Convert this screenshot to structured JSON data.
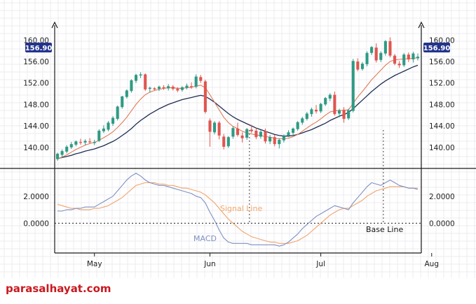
{
  "watermark": "parasalhayat.com",
  "colors": {
    "bull": "#2f9a84",
    "bear": "#e0554f",
    "fast_ma": "#e07a55",
    "slow_ma": "#1f2d52",
    "macd": "#7f8fc2",
    "signal": "#f2a46a",
    "badge": "#24348c",
    "grid": "#e6e6ee"
  },
  "chart_data": [
    {
      "type": "candlestick",
      "y_ticks": [
        "160.00",
        "156.00",
        "152.00",
        "148.00",
        "144.00",
        "140.00"
      ],
      "y_values": [
        160,
        156,
        152,
        148,
        144,
        140
      ],
      "ylim": [
        137.5,
        162
      ],
      "last_price_label": "156.90",
      "last_price": 156.9,
      "x_labels": [
        "May",
        "Jun",
        "Jul",
        "Aug"
      ],
      "x_label_index": [
        8,
        33,
        57,
        81
      ],
      "ohlc": [
        [
          137.8,
          139.0,
          137.5,
          138.8
        ],
        [
          138.6,
          139.6,
          138.0,
          139.3
        ],
        [
          139.2,
          140.4,
          138.9,
          140.1
        ],
        [
          140.0,
          141.0,
          139.7,
          140.6
        ],
        [
          140.5,
          141.3,
          140.2,
          141.1
        ],
        [
          141.0,
          141.6,
          140.5,
          140.9
        ],
        [
          140.9,
          141.5,
          140.4,
          141.2
        ],
        [
          141.1,
          141.7,
          140.7,
          141.0
        ],
        [
          140.8,
          141.4,
          140.4,
          141.0
        ],
        [
          141.2,
          143.4,
          141.0,
          143.1
        ],
        [
          143.0,
          144.1,
          142.7,
          143.5
        ],
        [
          143.3,
          144.9,
          143.0,
          144.6
        ],
        [
          144.4,
          145.8,
          144.0,
          145.5
        ],
        [
          145.3,
          147.8,
          145.0,
          147.6
        ],
        [
          147.5,
          149.6,
          147.2,
          149.5
        ],
        [
          149.4,
          150.8,
          149.1,
          150.6
        ],
        [
          150.5,
          152.7,
          150.2,
          152.5
        ],
        [
          152.4,
          153.7,
          152.0,
          153.5
        ],
        [
          153.4,
          154.0,
          152.9,
          153.6
        ],
        [
          153.6,
          153.8,
          150.5,
          150.8
        ],
        [
          150.9,
          151.3,
          150.2,
          151.1
        ],
        [
          151.0,
          151.2,
          150.6,
          150.8
        ],
        [
          150.9,
          151.5,
          150.5,
          151.3
        ],
        [
          151.2,
          151.6,
          150.7,
          151.0
        ],
        [
          151.0,
          151.8,
          150.6,
          151.4
        ],
        [
          151.3,
          151.6,
          150.6,
          150.9
        ],
        [
          150.9,
          151.2,
          150.3,
          150.6
        ],
        [
          150.7,
          151.4,
          150.4,
          151.2
        ],
        [
          151.1,
          151.9,
          150.8,
          151.5
        ],
        [
          151.4,
          152.1,
          150.9,
          151.2
        ],
        [
          151.3,
          153.6,
          151.0,
          153.2
        ],
        [
          153.1,
          153.5,
          152.0,
          152.4
        ],
        [
          152.3,
          152.6,
          146.3,
          146.6
        ],
        [
          145.0,
          145.4,
          140.1,
          142.9
        ],
        [
          142.8,
          144.9,
          142.4,
          144.6
        ],
        [
          144.6,
          144.9,
          141.5,
          142.2
        ],
        [
          142.0,
          142.5,
          139.6,
          140.1
        ],
        [
          140.2,
          142.1,
          139.9,
          141.9
        ],
        [
          142.0,
          143.9,
          141.6,
          143.6
        ],
        [
          143.5,
          144.6,
          142.0,
          142.3
        ],
        [
          142.2,
          142.8,
          140.9,
          141.7
        ],
        [
          141.8,
          143.6,
          141.4,
          143.4
        ],
        [
          143.3,
          144.2,
          142.7,
          143.0
        ],
        [
          143.1,
          143.6,
          141.5,
          141.9
        ],
        [
          142.0,
          143.2,
          141.6,
          142.9
        ],
        [
          143.0,
          143.5,
          140.7,
          141.1
        ],
        [
          141.1,
          142.3,
          140.6,
          141.9
        ],
        [
          141.9,
          142.3,
          140.2,
          140.6
        ],
        [
          140.6,
          141.7,
          139.8,
          141.4
        ],
        [
          141.3,
          142.4,
          140.9,
          142.1
        ],
        [
          142.2,
          143.2,
          141.9,
          142.8
        ],
        [
          142.7,
          143.7,
          142.3,
          143.5
        ],
        [
          143.4,
          144.9,
          143.1,
          144.7
        ],
        [
          144.6,
          145.7,
          144.2,
          145.4
        ],
        [
          145.3,
          146.6,
          145.0,
          146.3
        ],
        [
          146.2,
          147.4,
          145.7,
          147.1
        ],
        [
          147.0,
          147.9,
          146.3,
          146.7
        ],
        [
          146.7,
          148.3,
          146.4,
          148.1
        ],
        [
          148.0,
          149.4,
          147.7,
          149.2
        ],
        [
          149.1,
          150.1,
          148.6,
          149.8
        ],
        [
          149.8,
          150.4,
          145.9,
          146.2
        ],
        [
          146.3,
          147.2,
          145.6,
          146.9
        ],
        [
          147.0,
          147.5,
          144.6,
          145.3
        ],
        [
          145.4,
          147.2,
          145.1,
          146.9
        ],
        [
          146.8,
          156.5,
          146.5,
          156.1
        ],
        [
          156.0,
          156.6,
          154.2,
          154.5
        ],
        [
          154.6,
          155.9,
          154.3,
          155.6
        ],
        [
          155.5,
          157.9,
          155.1,
          157.6
        ],
        [
          157.6,
          158.9,
          157.2,
          158.7
        ],
        [
          158.6,
          159.4,
          155.8,
          156.2
        ],
        [
          156.3,
          157.9,
          155.9,
          157.6
        ],
        [
          157.5,
          160.0,
          157.1,
          159.8
        ],
        [
          159.8,
          160.5,
          156.8,
          157.1
        ],
        [
          157.1,
          157.4,
          155.3,
          155.6
        ],
        [
          155.6,
          156.1,
          154.8,
          155.3
        ],
        [
          155.3,
          157.6,
          155.0,
          157.3
        ],
        [
          157.3,
          157.7,
          155.9,
          156.4
        ],
        [
          156.4,
          157.8,
          155.8,
          157.5
        ],
        [
          156.6,
          157.5,
          156.2,
          156.9
        ]
      ],
      "fast_ma": [
        137.8,
        138.2,
        138.6,
        139.1,
        139.6,
        140.0,
        140.4,
        140.7,
        140.9,
        141.3,
        141.8,
        142.3,
        142.9,
        143.7,
        144.6,
        145.6,
        146.8,
        148.0,
        149.0,
        149.8,
        150.3,
        150.6,
        150.8,
        151.0,
        151.1,
        151.1,
        151.0,
        151.0,
        151.1,
        151.2,
        151.4,
        151.6,
        151.1,
        149.8,
        148.4,
        147.0,
        145.6,
        144.6,
        143.9,
        143.5,
        143.0,
        142.7,
        142.5,
        142.3,
        142.2,
        142.0,
        141.9,
        141.7,
        141.6,
        141.6,
        141.7,
        142.0,
        142.4,
        143.0,
        143.6,
        144.2,
        144.7,
        145.3,
        146.0,
        146.6,
        146.8,
        146.9,
        146.9,
        147.0,
        148.2,
        149.4,
        150.4,
        151.5,
        152.6,
        153.5,
        154.4,
        155.3,
        156.0,
        156.3,
        156.4,
        156.5,
        156.5,
        156.6,
        156.7
      ],
      "slow_ma": [
        137.9,
        138.1,
        138.3,
        138.5,
        138.8,
        139.0,
        139.3,
        139.5,
        139.7,
        140.0,
        140.3,
        140.7,
        141.1,
        141.6,
        142.2,
        142.8,
        143.5,
        144.3,
        145.0,
        145.6,
        146.2,
        146.7,
        147.2,
        147.6,
        148.0,
        148.3,
        148.6,
        148.9,
        149.1,
        149.3,
        149.5,
        149.7,
        149.5,
        149.0,
        148.4,
        147.7,
        147.0,
        146.3,
        145.7,
        145.2,
        144.8,
        144.4,
        144.0,
        143.6,
        143.3,
        143.0,
        142.7,
        142.4,
        142.2,
        142.1,
        142.1,
        142.2,
        142.4,
        142.7,
        143.0,
        143.3,
        143.7,
        144.1,
        144.5,
        145.0,
        145.4,
        145.8,
        146.1,
        146.5,
        147.2,
        148.0,
        148.8,
        149.6,
        150.4,
        151.1,
        151.8,
        152.4,
        152.9,
        153.4,
        153.8,
        154.2,
        154.6,
        155.0,
        155.3
      ]
    },
    {
      "type": "line",
      "y_ticks": [
        "2.0000",
        "0.0000"
      ],
      "y_values": [
        2.0,
        0.0
      ],
      "ylim": [
        -2.0,
        3.8
      ],
      "series": [
        {
          "name": "MACD",
          "values": [
            0.9,
            0.9,
            1.0,
            1.0,
            1.1,
            1.1,
            1.2,
            1.2,
            1.2,
            1.4,
            1.6,
            1.8,
            2.0,
            2.4,
            2.8,
            3.2,
            3.5,
            3.7,
            3.5,
            3.2,
            3.0,
            2.9,
            2.8,
            2.8,
            2.7,
            2.6,
            2.5,
            2.4,
            2.3,
            2.2,
            2.0,
            1.9,
            1.5,
            0.8,
            0.2,
            -0.5,
            -1.1,
            -1.4,
            -1.5,
            -1.5,
            -1.5,
            -1.5,
            -1.6,
            -1.6,
            -1.6,
            -1.6,
            -1.6,
            -1.6,
            -1.7,
            -1.6,
            -1.4,
            -1.1,
            -0.8,
            -0.4,
            -0.1,
            0.2,
            0.5,
            0.7,
            0.9,
            1.1,
            1.3,
            1.2,
            1.1,
            1.0,
            1.5,
            1.9,
            2.3,
            2.7,
            3.0,
            2.9,
            2.8,
            3.0,
            3.2,
            3.0,
            2.8,
            2.7,
            2.6,
            2.6,
            2.5
          ]
        },
        {
          "name": "Signal Line",
          "values": [
            1.4,
            1.3,
            1.2,
            1.1,
            1.1,
            1.0,
            1.0,
            1.0,
            1.1,
            1.1,
            1.2,
            1.3,
            1.5,
            1.7,
            1.9,
            2.2,
            2.5,
            2.8,
            2.9,
            3.0,
            3.0,
            3.0,
            2.9,
            2.9,
            2.8,
            2.8,
            2.7,
            2.6,
            2.6,
            2.5,
            2.4,
            2.3,
            2.1,
            1.8,
            1.5,
            1.1,
            0.7,
            0.3,
            0.0,
            -0.3,
            -0.6,
            -0.8,
            -1.0,
            -1.1,
            -1.2,
            -1.3,
            -1.4,
            -1.4,
            -1.5,
            -1.5,
            -1.5,
            -1.4,
            -1.3,
            -1.1,
            -0.9,
            -0.6,
            -0.3,
            0.0,
            0.3,
            0.6,
            0.8,
            1.0,
            1.1,
            1.1,
            1.3,
            1.5,
            1.7,
            2.0,
            2.2,
            2.4,
            2.5,
            2.6,
            2.7,
            2.7,
            2.7,
            2.7,
            2.6,
            2.6,
            2.6
          ]
        }
      ],
      "baseline": 0,
      "annotations": {
        "signal": "Signal Line",
        "macd": "MACD",
        "base": "Base Line"
      },
      "crossover_index": [
        42,
        71
      ]
    }
  ]
}
